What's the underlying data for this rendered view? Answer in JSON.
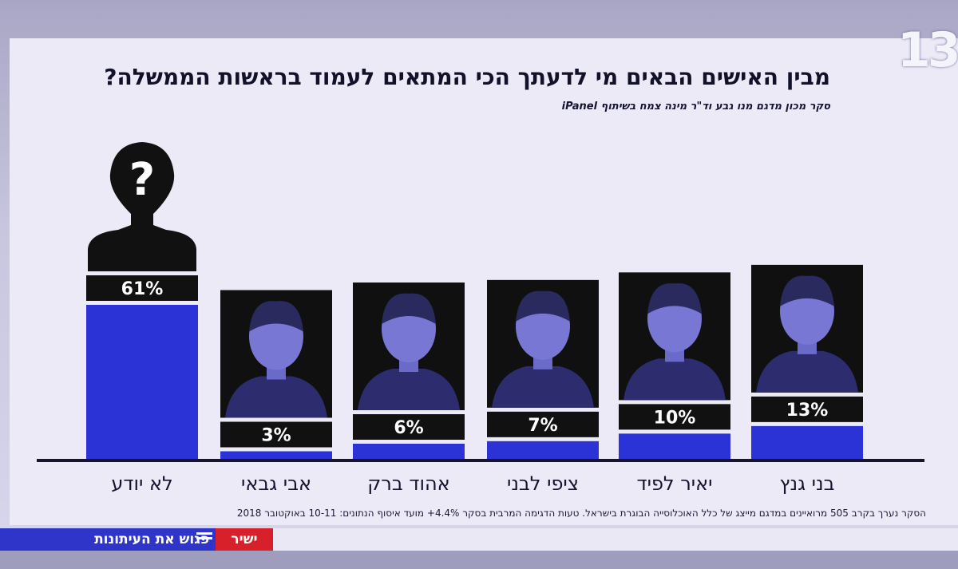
{
  "broadcast": {
    "channel_logo": "13",
    "ticker_text": "פגוש את העיתונות",
    "live_label": "ישיר"
  },
  "colors": {
    "bar": "#2b32d6",
    "label_box": "#111111",
    "photo_tint": "#3a3aa8",
    "axis": "#16152a"
  },
  "chart_data": {
    "type": "bar",
    "title": "מבין האישים הבאים מי לדעתך הכי המתאים לעמוד בראשות הממשלה?",
    "subtitle": "סקר מכון מדגם מנו גבע וד\"ר מינה צמח בשיתוף iPanel",
    "categories": [
      "לא יודע",
      "אבי גבאי",
      "אהוד ברק",
      "ציפי לבני",
      "יאיר לפיד",
      "בני גנץ"
    ],
    "values": [
      61,
      3,
      6,
      7,
      10,
      13
    ],
    "value_labels": [
      "61%",
      "3%",
      "6%",
      "7%",
      "10%",
      "13%"
    ],
    "photos": [
      "unknown-silhouette-icon",
      "portrait",
      "portrait",
      "portrait",
      "portrait",
      "portrait"
    ],
    "ylim": [
      0,
      61
    ],
    "grid": false,
    "footnote": "הסקר נערך בקרב 505 מרואיינים במדגם מייצג של כלל האוכלוסייה הבוגרת בישראל. טעות הדגימה המרבית בסקר 4.4%+ מועד איסוף הנתונים: 10-11 באוקטובר 2018"
  }
}
